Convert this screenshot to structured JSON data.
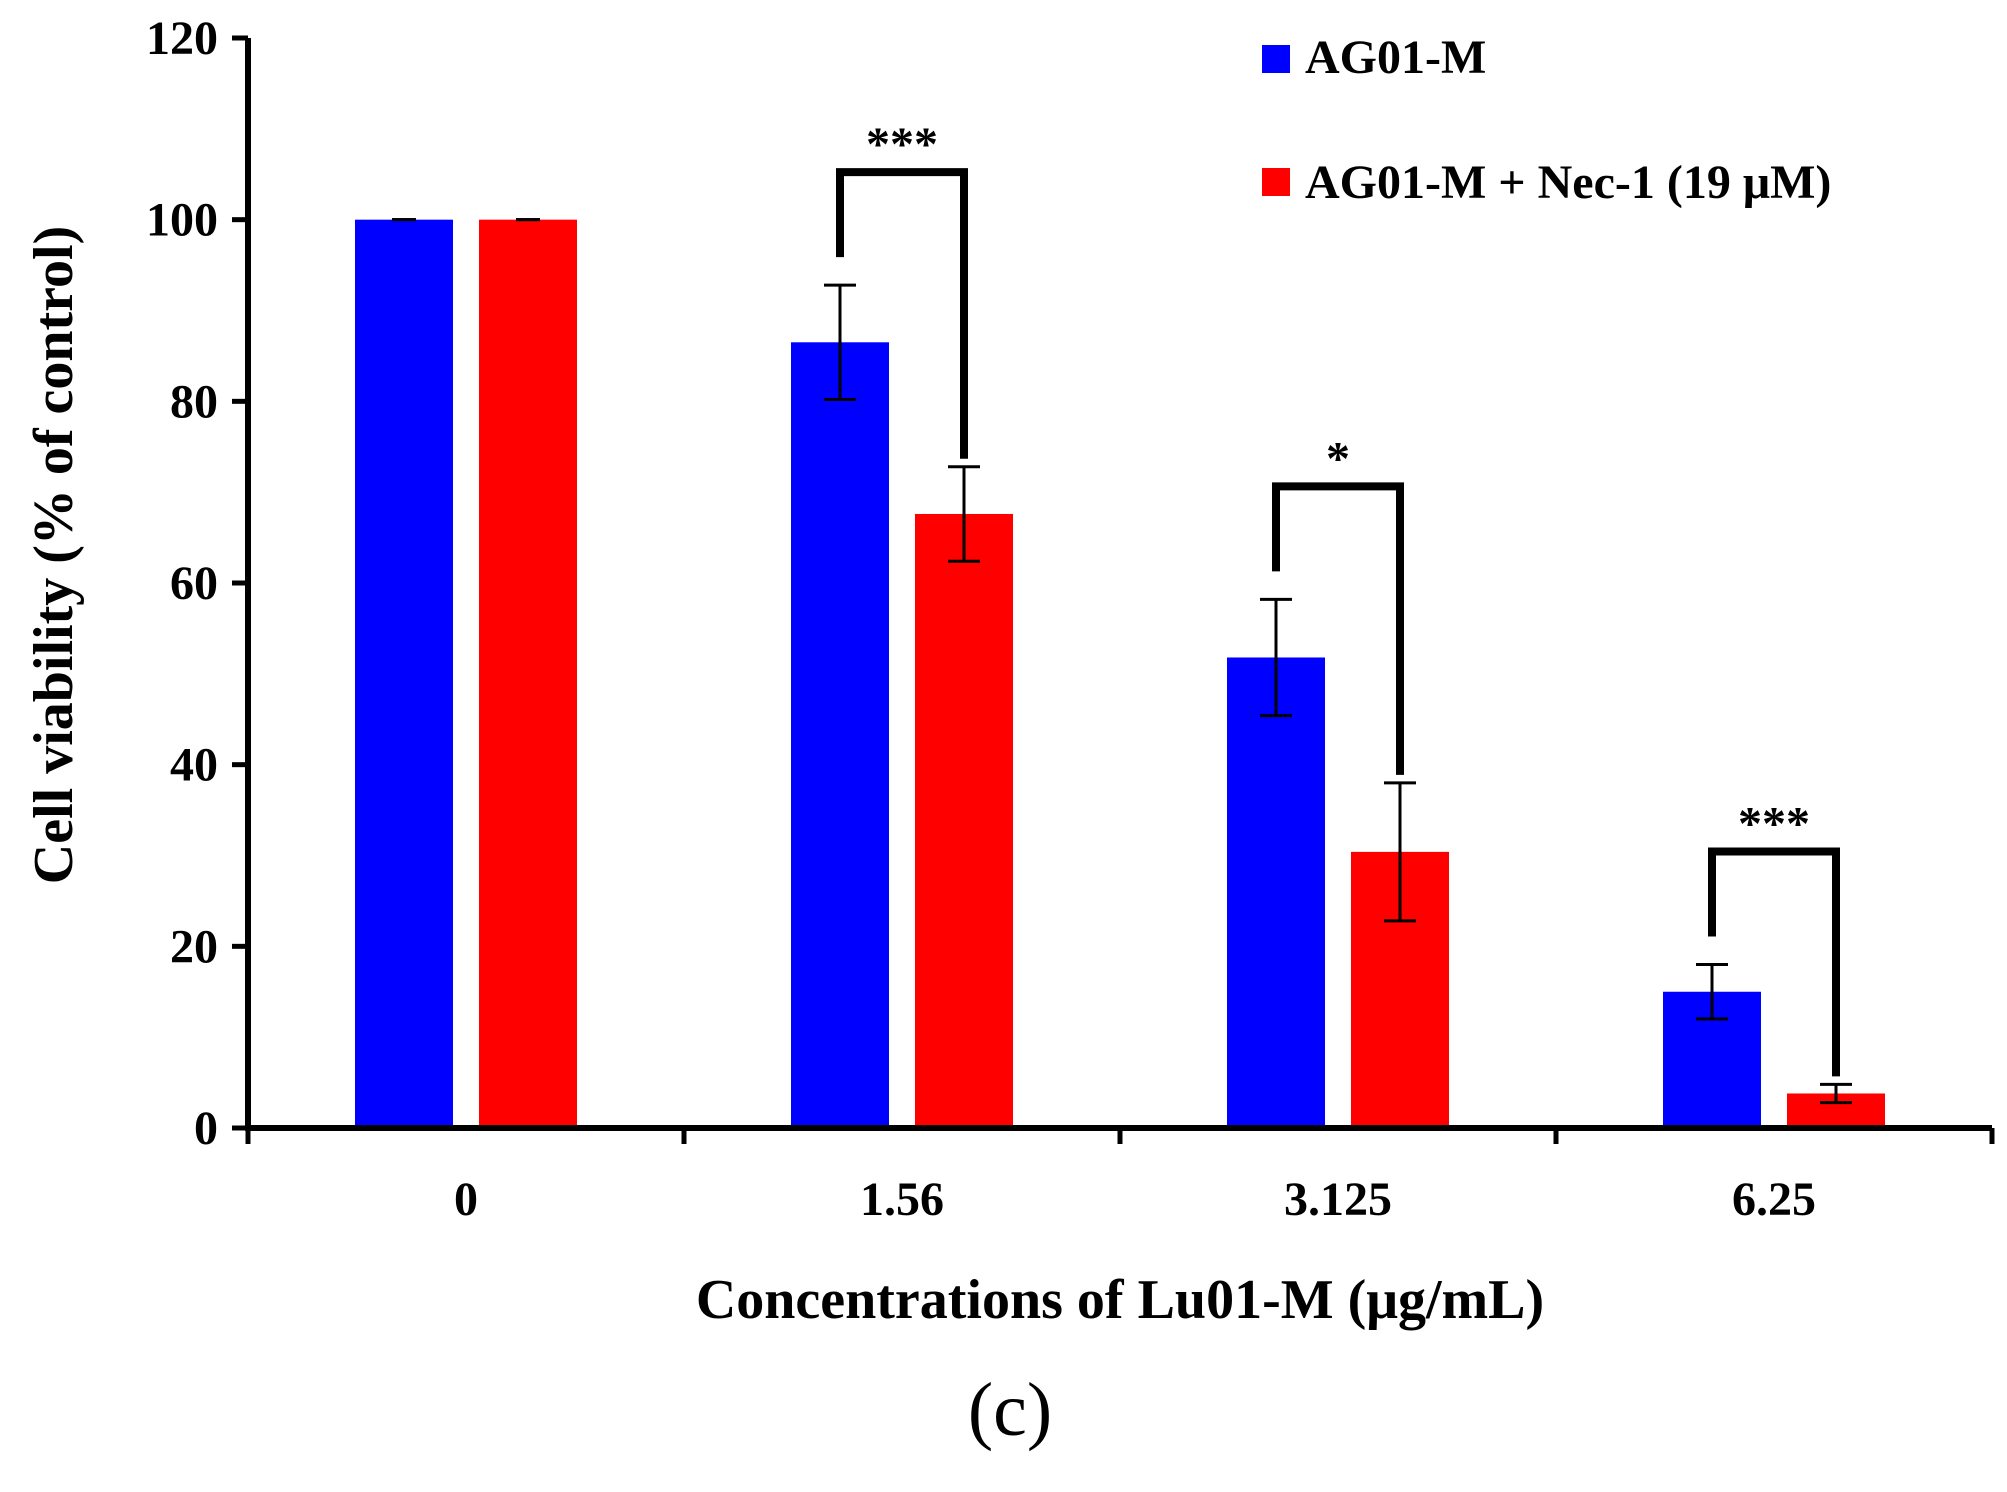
{
  "chart_data": {
    "type": "bar",
    "xlabel": "Concentrations of Lu01-M (μg/mL)",
    "ylabel": "Cell viability (% of control)",
    "ylim": [
      0,
      120
    ],
    "yticks": [
      "0",
      "20",
      "40",
      "60",
      "80",
      "100",
      "120"
    ],
    "categories": [
      "0",
      "1.56",
      "3.125",
      "6.25"
    ],
    "series": [
      {
        "name": "AG01-M",
        "color": "#0000ff",
        "values": [
          100,
          86.5,
          51.8,
          15
        ],
        "errors": [
          0,
          6.3,
          6.4,
          3
        ]
      },
      {
        "name": "AG01-M + Nec-1 (19 μM)",
        "color": "#ff0000",
        "values": [
          100,
          67.6,
          30.4,
          3.8
        ],
        "errors": [
          0,
          5.2,
          7.6,
          1
        ]
      }
    ],
    "significance": [
      {
        "category_index": 1,
        "label": "***"
      },
      {
        "category_index": 2,
        "label": "*"
      },
      {
        "category_index": 3,
        "label": "***"
      }
    ],
    "legend_position": "top-right",
    "grid": false,
    "panel_label": "(c)"
  }
}
